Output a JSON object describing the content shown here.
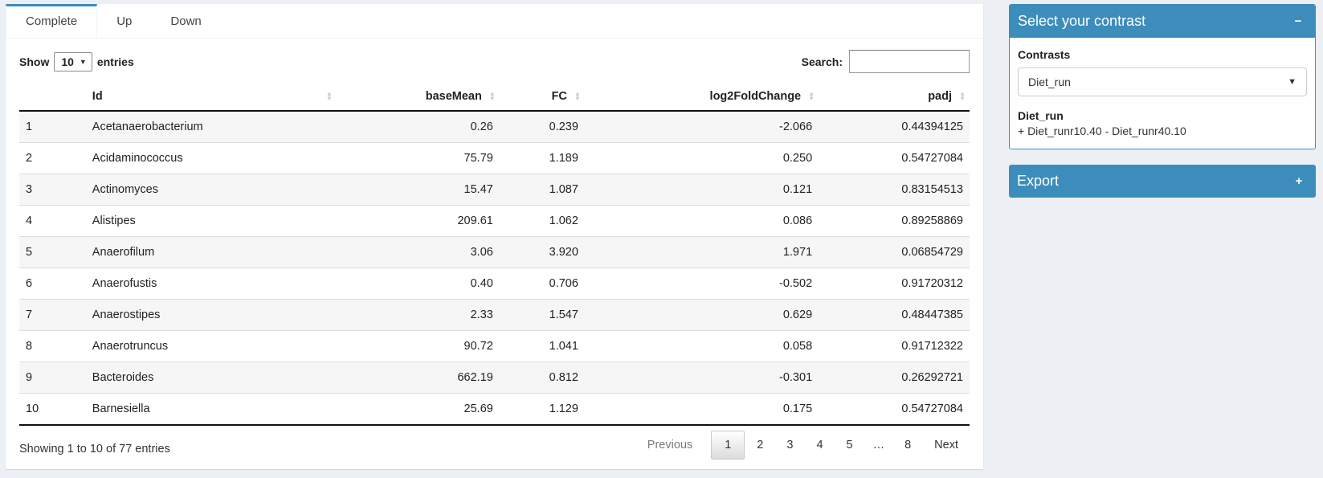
{
  "colors": {
    "primary": "#3c8dbc",
    "page_bg": "#ecf0f5",
    "stripe": "#f6f6f6"
  },
  "icons": {
    "sort_up": "▲",
    "sort_down": "▼",
    "select_caret": "▼",
    "length_caret": "▼",
    "collapse_minus": "−",
    "collapse_plus": "+"
  },
  "tabs": [
    {
      "label": "Complete",
      "active": true
    },
    {
      "label": "Up",
      "active": false
    },
    {
      "label": "Down",
      "active": false
    }
  ],
  "length_menu": {
    "prefix": "Show",
    "selected": "10",
    "suffix": "entries"
  },
  "search": {
    "label": "Search:",
    "value": "",
    "placeholder": ""
  },
  "table": {
    "columns": [
      "Id",
      "baseMean",
      "FC",
      "log2FoldChange",
      "padj"
    ],
    "rows": [
      {
        "n": "1",
        "id": "Acetanaerobacterium",
        "baseMean": "0.26",
        "fc": "0.239",
        "log2fc": "-2.066",
        "padj": "0.44394125"
      },
      {
        "n": "2",
        "id": "Acidaminococcus",
        "baseMean": "75.79",
        "fc": "1.189",
        "log2fc": "0.250",
        "padj": "0.54727084"
      },
      {
        "n": "3",
        "id": "Actinomyces",
        "baseMean": "15.47",
        "fc": "1.087",
        "log2fc": "0.121",
        "padj": "0.83154513"
      },
      {
        "n": "4",
        "id": "Alistipes",
        "baseMean": "209.61",
        "fc": "1.062",
        "log2fc": "0.086",
        "padj": "0.89258869"
      },
      {
        "n": "5",
        "id": "Anaerofilum",
        "baseMean": "3.06",
        "fc": "3.920",
        "log2fc": "1.971",
        "padj": "0.06854729"
      },
      {
        "n": "6",
        "id": "Anaerofustis",
        "baseMean": "0.40",
        "fc": "0.706",
        "log2fc": "-0.502",
        "padj": "0.91720312"
      },
      {
        "n": "7",
        "id": "Anaerostipes",
        "baseMean": "2.33",
        "fc": "1.547",
        "log2fc": "0.629",
        "padj": "0.48447385"
      },
      {
        "n": "8",
        "id": "Anaerotruncus",
        "baseMean": "90.72",
        "fc": "1.041",
        "log2fc": "0.058",
        "padj": "0.91712322"
      },
      {
        "n": "9",
        "id": "Bacteroides",
        "baseMean": "662.19",
        "fc": "0.812",
        "log2fc": "-0.301",
        "padj": "0.26292721"
      },
      {
        "n": "10",
        "id": "Barnesiella",
        "baseMean": "25.69",
        "fc": "1.129",
        "log2fc": "0.175",
        "padj": "0.54727084"
      }
    ]
  },
  "footer": {
    "info": "Showing 1 to 10 of 77 entries",
    "pagination": {
      "previous": "Previous",
      "pages": [
        "1",
        "2",
        "3",
        "4",
        "5",
        "…",
        "8"
      ],
      "active_page": "1",
      "next": "Next"
    }
  },
  "sidebar": {
    "contrast_box": {
      "title": "Select your contrast",
      "contrasts_label": "Contrasts",
      "selected_contrast": "Diet_run",
      "contrast_name": "Diet_run",
      "contrast_formula": "+ Diet_runr10.40 - Diet_runr40.10"
    },
    "export_box": {
      "title": "Export"
    }
  }
}
